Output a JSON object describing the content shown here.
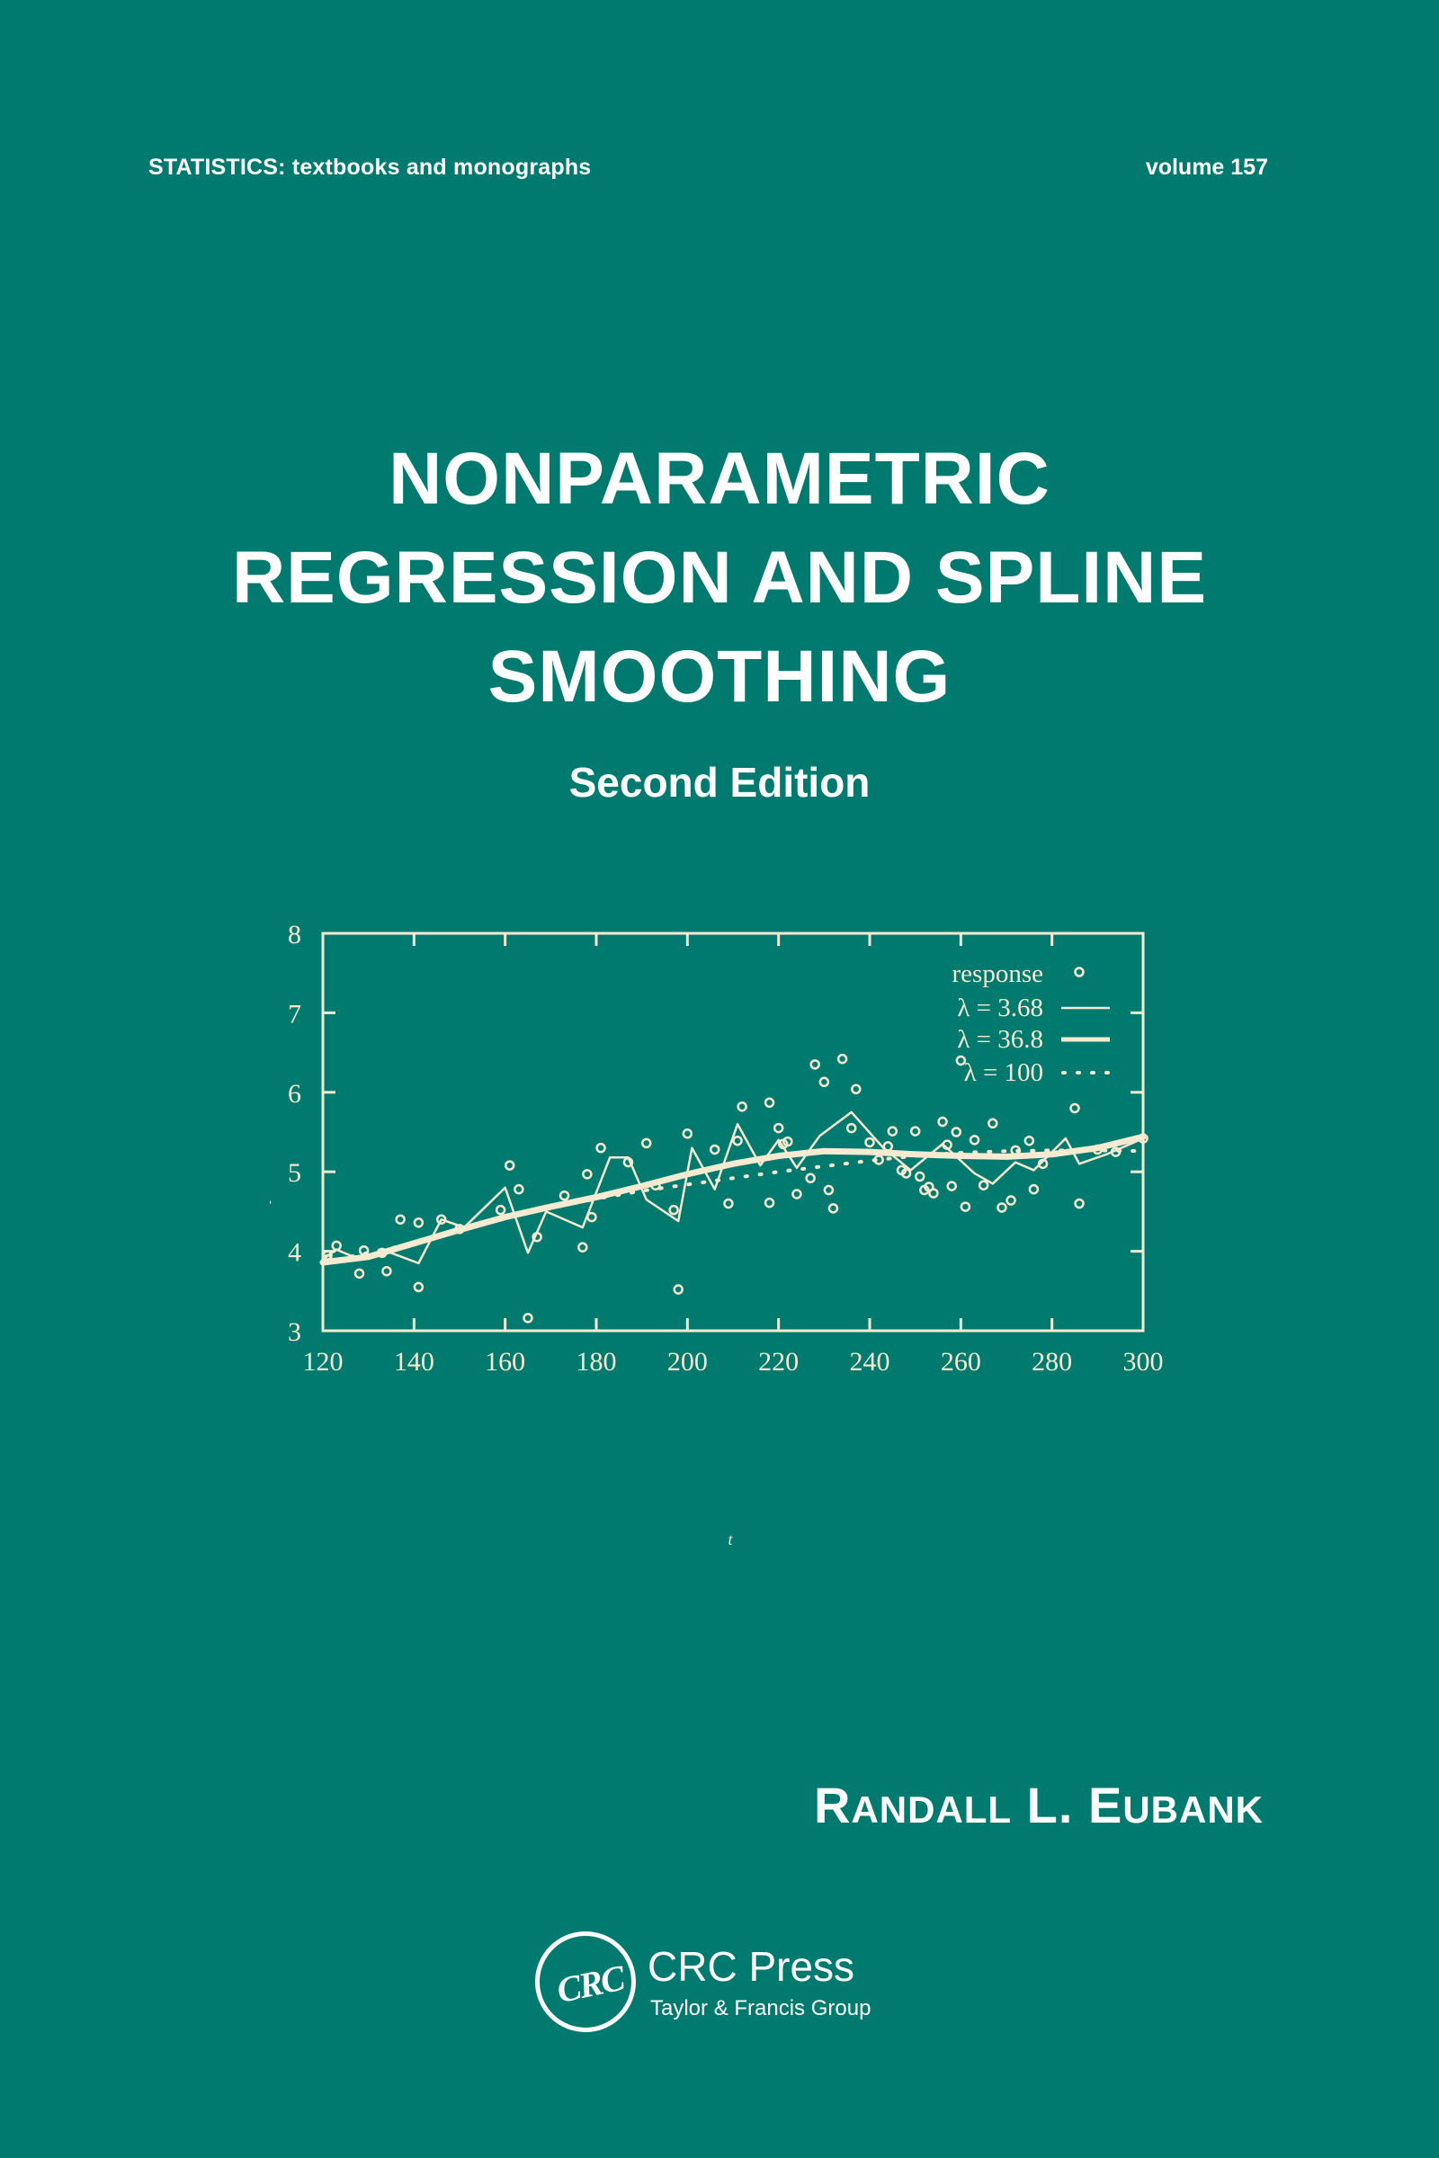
{
  "cover": {
    "series": "STATISTICS:  textbooks and monographs",
    "volume": "volume 157",
    "title_lines": [
      "NONPARAMETRIC",
      "REGRESSION AND SPLINE",
      "SMOOTHING"
    ],
    "edition": "Second Edition",
    "author": {
      "first_initial": "R",
      "first_rest": "ANDALL",
      "middle": "L.",
      "last_initial": "E",
      "last_rest": "UBANK"
    },
    "publisher": {
      "logo_text": "CRC",
      "name": "CRC Press",
      "group": "Taylor & Francis Group"
    },
    "colors": {
      "background": "#007a6e",
      "text": "#ffffff",
      "chart_ink": "#f6ead0"
    }
  },
  "chart_data": {
    "type": "scatter",
    "title": "",
    "xlabel": "t",
    "ylabel": "y",
    "xlim": [
      120,
      300
    ],
    "ylim": [
      3,
      8
    ],
    "x_ticks": [
      120,
      140,
      160,
      180,
      200,
      220,
      240,
      260,
      280,
      300
    ],
    "y_ticks": [
      3,
      4,
      5,
      6,
      7,
      8
    ],
    "grid": false,
    "legend_position": "upper right (inside)",
    "legend": [
      {
        "label": "response",
        "marker": "open circle"
      },
      {
        "label": "λ = 3.68",
        "style": "thin solid line"
      },
      {
        "label": "λ = 36.8",
        "style": "thick solid line"
      },
      {
        "label": "λ = 100",
        "style": "dotted line"
      }
    ],
    "series": [
      {
        "name": "response",
        "kind": "points",
        "x": [
          121,
          121,
          123,
          128,
          129,
          133,
          134,
          137,
          141,
          141,
          146,
          150,
          159,
          161,
          163,
          165,
          167,
          173,
          177,
          178,
          179,
          181,
          187,
          191,
          193,
          197,
          198,
          200,
          206,
          209,
          211,
          212,
          218,
          218,
          220,
          221,
          222,
          224,
          227,
          228,
          230,
          231,
          232,
          234,
          236,
          237,
          240,
          242,
          244,
          245,
          247,
          248,
          250,
          251,
          252,
          253,
          254,
          256,
          257,
          258,
          259,
          260,
          261,
          263,
          265,
          267,
          269,
          271,
          272,
          275,
          276,
          278,
          285,
          286,
          290,
          294,
          300
        ],
        "y": [
          3.95,
          3.9,
          4.07,
          3.72,
          4.01,
          3.98,
          3.75,
          4.4,
          3.55,
          4.36,
          4.4,
          4.28,
          4.52,
          5.08,
          4.78,
          3.16,
          4.18,
          4.7,
          4.05,
          4.97,
          4.43,
          5.3,
          5.12,
          5.36,
          4.83,
          4.52,
          3.52,
          5.48,
          5.28,
          4.6,
          5.39,
          5.82,
          4.61,
          5.87,
          5.55,
          5.35,
          5.38,
          4.72,
          4.92,
          6.35,
          6.13,
          4.77,
          4.54,
          6.42,
          5.55,
          6.04,
          5.37,
          5.15,
          5.32,
          5.51,
          5.02,
          4.98,
          5.51,
          4.94,
          4.77,
          4.81,
          4.73,
          5.63,
          5.34,
          4.82,
          5.5,
          6.4,
          4.56,
          5.4,
          4.83,
          5.61,
          4.55,
          4.64,
          5.27,
          5.39,
          4.78,
          5.1,
          5.8,
          4.6,
          5.28,
          5.25,
          5.42
        ]
      },
      {
        "name": "λ = 3.68",
        "kind": "line",
        "x": [
          120,
          123,
          128,
          134,
          141,
          146,
          151,
          160,
          165,
          169,
          177,
          183,
          187,
          191,
          198,
          201,
          206,
          211,
          216,
          220,
          224,
          229,
          236,
          243,
          249,
          256,
          263,
          267,
          272,
          276,
          283,
          286,
          292,
          300
        ],
        "y": [
          3.9,
          4.02,
          3.9,
          4.0,
          3.85,
          4.4,
          4.3,
          4.8,
          3.98,
          4.5,
          4.3,
          5.18,
          5.18,
          4.65,
          4.38,
          5.3,
          4.78,
          5.6,
          5.08,
          5.4,
          5.05,
          5.45,
          5.75,
          5.3,
          5.02,
          5.35,
          4.98,
          4.85,
          5.12,
          5.02,
          5.42,
          5.1,
          5.22,
          5.42
        ]
      },
      {
        "name": "λ = 36.8",
        "kind": "line",
        "x": [
          120,
          130,
          140,
          150,
          160,
          170,
          180,
          190,
          200,
          210,
          220,
          230,
          240,
          250,
          260,
          270,
          280,
          290,
          300
        ],
        "y": [
          3.86,
          3.93,
          4.1,
          4.27,
          4.43,
          4.56,
          4.68,
          4.82,
          4.97,
          5.1,
          5.2,
          5.26,
          5.25,
          5.22,
          5.2,
          5.19,
          5.22,
          5.3,
          5.44
        ]
      },
      {
        "name": "λ = 100",
        "kind": "dotted",
        "x": [
          120,
          140,
          160,
          180,
          190,
          200,
          210,
          220,
          230,
          240,
          250,
          260,
          270,
          280,
          290,
          300
        ],
        "y": [
          3.86,
          4.1,
          4.43,
          4.66,
          4.76,
          4.84,
          4.92,
          5.0,
          5.07,
          5.14,
          5.2,
          5.24,
          5.26,
          5.27,
          5.27,
          5.26
        ]
      }
    ]
  }
}
